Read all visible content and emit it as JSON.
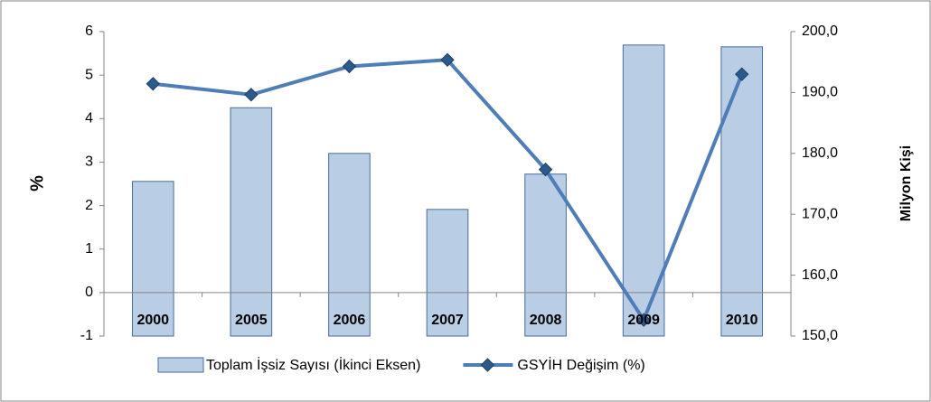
{
  "chart_data": {
    "type": "bar_line",
    "categories": [
      "2000",
      "2005",
      "2006",
      "2007",
      "2008",
      "2009",
      "2010"
    ],
    "series": [
      {
        "name": "Toplam İşsiz Sayısı (İkinci Eksen)",
        "type": "bar",
        "axis": "y2",
        "color": "#b9cde5",
        "values": [
          175.4,
          187.5,
          180.0,
          170.8,
          176.6,
          197.8,
          197.5
        ]
      },
      {
        "name": "GSYİH Değişim (%)",
        "type": "line",
        "color": "#4f7db8",
        "values": [
          4.8,
          4.55,
          5.2,
          5.35,
          2.83,
          -0.63,
          5.02
        ]
      }
    ],
    "ylabel": "%",
    "y2label": "Milyon Kişi",
    "ylim": [
      -1,
      6
    ],
    "yticks": [
      -1,
      0,
      1,
      2,
      3,
      4,
      5,
      6
    ],
    "y2lim": [
      150,
      200
    ],
    "y2ticks": [
      {
        "value": 150,
        "label": "150,0"
      },
      {
        "value": 160,
        "label": "160,0"
      },
      {
        "value": 170,
        "label": "170,0"
      },
      {
        "value": 180,
        "label": "180,0"
      },
      {
        "value": 190,
        "label": "190,0"
      },
      {
        "value": 200,
        "label": "200,0"
      }
    ],
    "legend": "bottom"
  }
}
